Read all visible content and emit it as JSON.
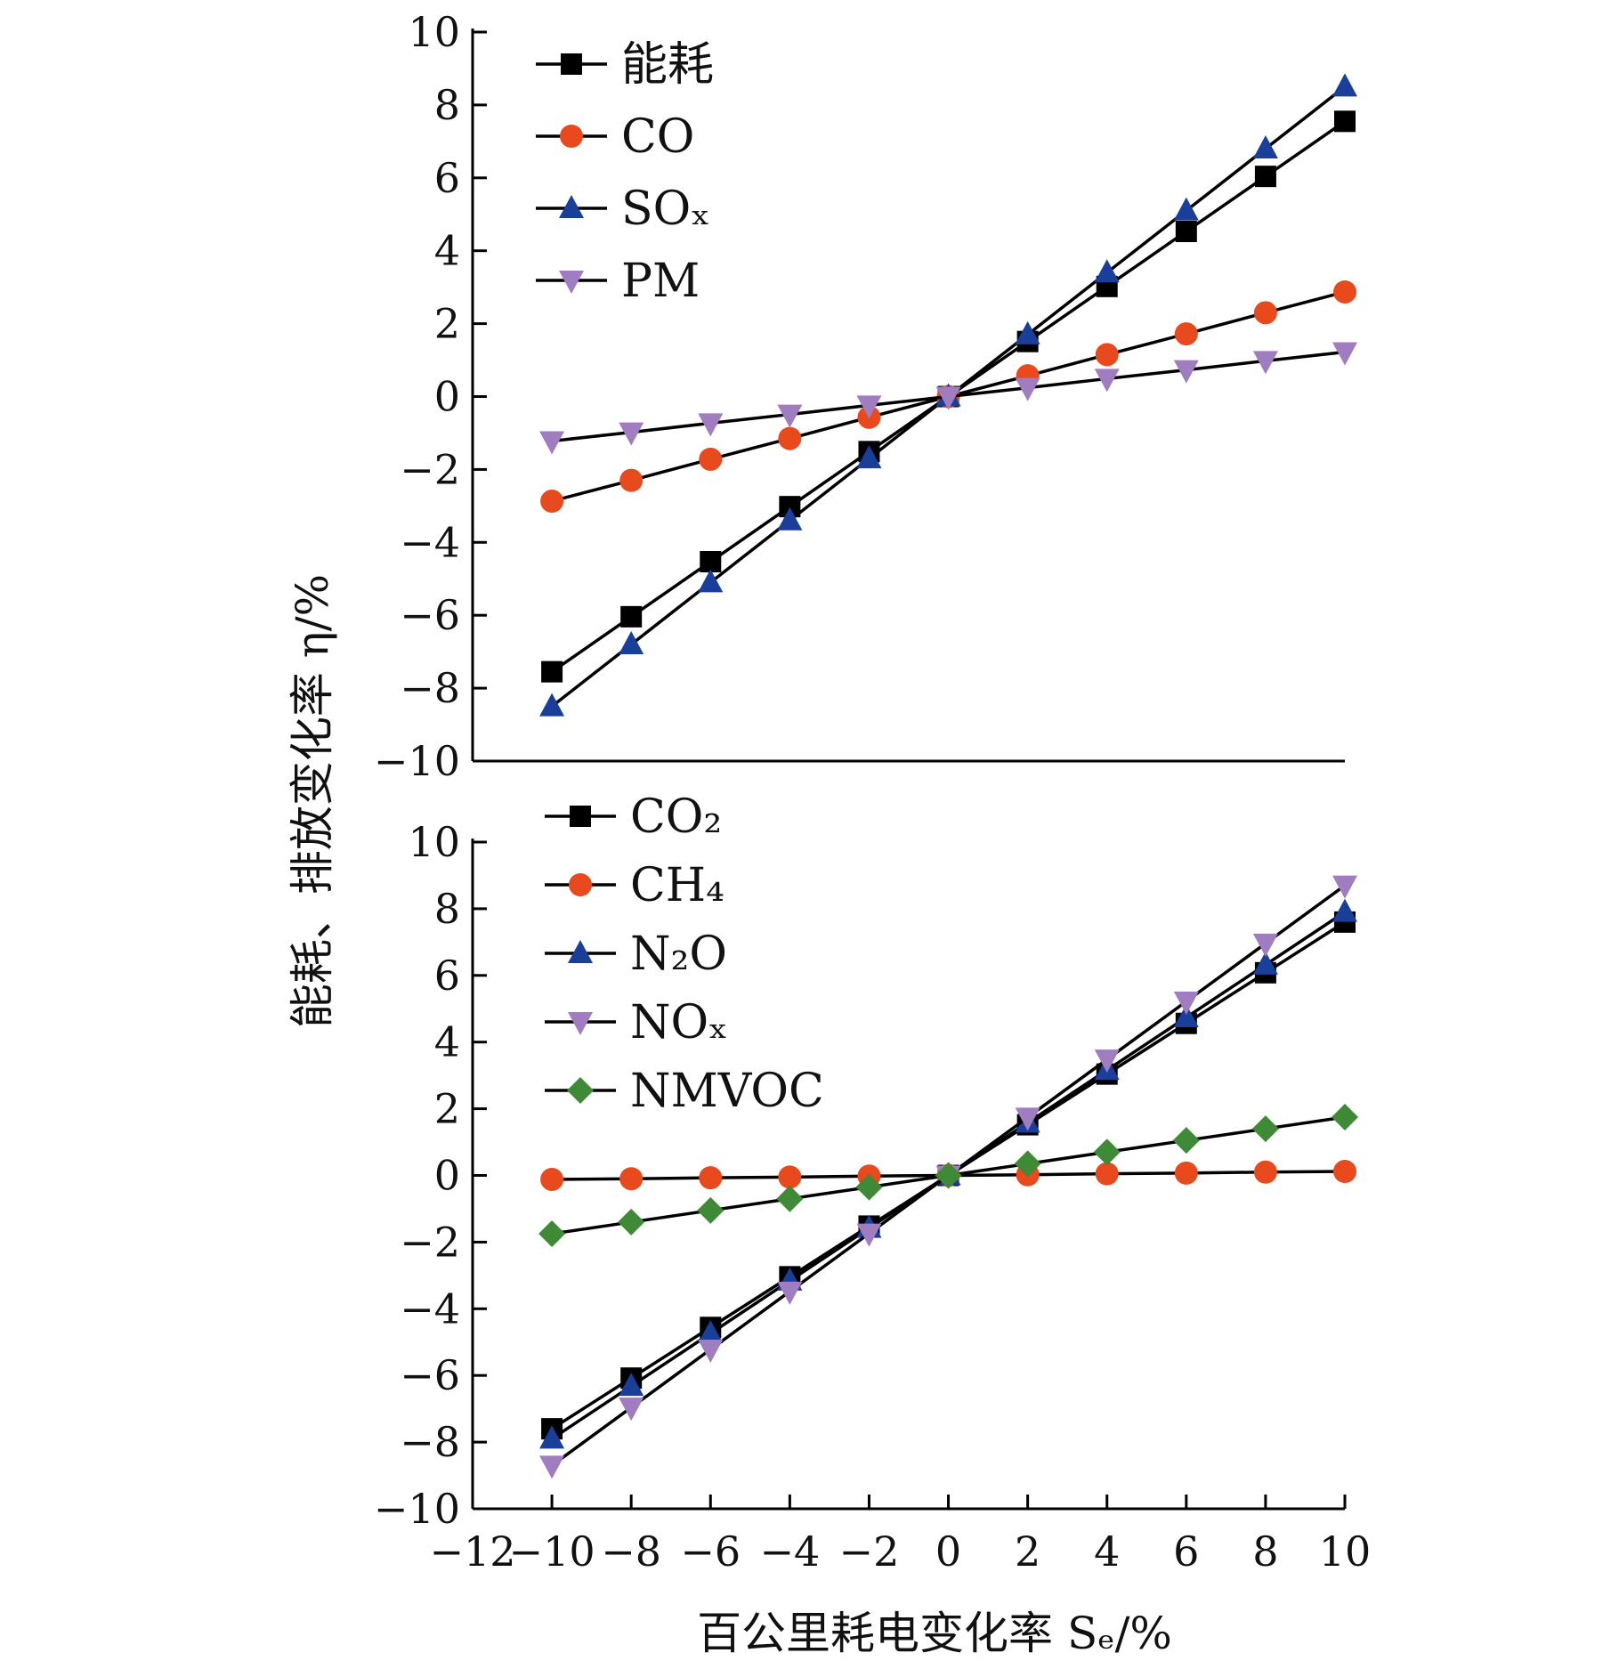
{
  "figure": {
    "ylabel": "能耗、排放变化率 η/%",
    "xlabel": "百公里耗电变化率 Sₑ/%",
    "x_tick_labels": [
      "−12",
      "−10",
      "−8",
      "−6",
      "−4",
      "−2",
      "0",
      "2",
      "4",
      "6",
      "8",
      "10"
    ],
    "y_tick_labels": [
      "−10",
      "−8",
      "−6",
      "−4",
      "−2",
      "0",
      "2",
      "4",
      "6",
      "8",
      "10"
    ]
  },
  "chart_data": [
    {
      "type": "line",
      "panel": "top",
      "x": [
        -10,
        -8,
        -6,
        -4,
        -2,
        0,
        2,
        4,
        6,
        8,
        10
      ],
      "xlim": [
        -12,
        10
      ],
      "ylim": [
        -10,
        10
      ],
      "legend_position": "top-left",
      "series": [
        {
          "name": "能耗",
          "marker": "square",
          "color": "#000000",
          "values": [
            -7.55,
            -6.04,
            -4.53,
            -3.02,
            -1.51,
            0,
            1.51,
            3.02,
            4.53,
            6.04,
            7.55
          ]
        },
        {
          "name": "CO",
          "marker": "circle",
          "color": "#e8491d",
          "values": [
            -2.87,
            -2.3,
            -1.72,
            -1.15,
            -0.57,
            0,
            0.57,
            1.15,
            1.72,
            2.3,
            2.87
          ]
        },
        {
          "name": "SOₓ",
          "marker": "triangle-up",
          "color": "#1a3f9a",
          "values": [
            -8.5,
            -6.8,
            -5.1,
            -3.4,
            -1.7,
            0,
            1.7,
            3.4,
            5.1,
            6.8,
            8.5
          ]
        },
        {
          "name": "PM",
          "marker": "triangle-down",
          "color": "#a07cc0",
          "values": [
            -1.22,
            -0.98,
            -0.73,
            -0.49,
            -0.24,
            0,
            0.24,
            0.49,
            0.73,
            0.98,
            1.22
          ]
        }
      ]
    },
    {
      "type": "line",
      "panel": "bottom",
      "x": [
        -10,
        -8,
        -6,
        -4,
        -2,
        0,
        2,
        4,
        6,
        8,
        10
      ],
      "xlim": [
        -12,
        10
      ],
      "ylim": [
        -10,
        10
      ],
      "legend_position": "top-left",
      "series": [
        {
          "name": "CO₂",
          "marker": "square",
          "color": "#000000",
          "values": [
            -7.6,
            -6.08,
            -4.56,
            -3.04,
            -1.52,
            0,
            1.52,
            3.04,
            4.56,
            6.08,
            7.6
          ]
        },
        {
          "name": "CH₄",
          "marker": "circle",
          "color": "#e8491d",
          "values": [
            -0.12,
            -0.1,
            -0.07,
            -0.05,
            -0.02,
            0,
            0.02,
            0.05,
            0.07,
            0.1,
            0.12
          ]
        },
        {
          "name": "N₂O",
          "marker": "triangle-up",
          "color": "#1a3f9a",
          "values": [
            -7.9,
            -6.32,
            -4.74,
            -3.16,
            -1.58,
            0,
            1.58,
            3.16,
            4.74,
            6.32,
            7.9
          ]
        },
        {
          "name": "NOₓ",
          "marker": "triangle-down",
          "color": "#a07cc0",
          "values": [
            -8.7,
            -6.96,
            -5.22,
            -3.48,
            -1.74,
            0,
            1.74,
            3.48,
            5.22,
            6.96,
            8.7
          ]
        },
        {
          "name": "NMVOC",
          "marker": "diamond",
          "color": "#3f8a36",
          "values": [
            -1.75,
            -1.4,
            -1.05,
            -0.7,
            -0.35,
            0,
            0.35,
            0.7,
            1.05,
            1.4,
            1.75
          ]
        }
      ]
    }
  ]
}
